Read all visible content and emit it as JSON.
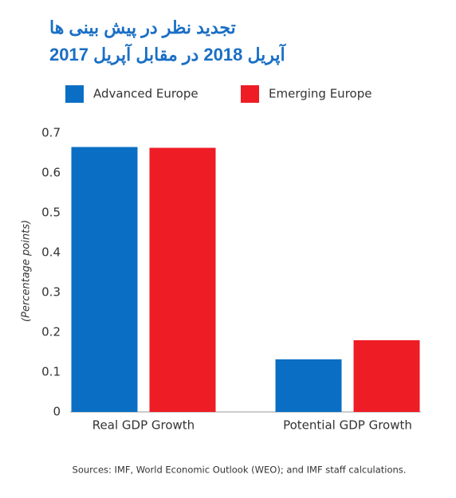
{
  "chart_data": {
    "type": "bar",
    "title": [
      "تجدید نظر در پیش بینی ها",
      "آپریل 2018 در مقابل آپریل 2017"
    ],
    "y_label": "(Percentage points)",
    "source": "Sources: IMF, World Economic Outlook (WEO); and IMF staff calculations.",
    "categories": [
      "Real GDP Growth",
      "Potential GDP Growth"
    ],
    "series": [
      {
        "name": "Advanced Europe",
        "color": "#0a6fc4",
        "values": [
          0.665,
          0.132
        ]
      },
      {
        "name": "Emerging Europe",
        "color": "#ee1c25",
        "values": [
          0.663,
          0.18
        ]
      }
    ],
    "ylim": [
      0,
      0.7
    ],
    "yticks": [
      0,
      0.1,
      0.2,
      0.3,
      0.4,
      0.5,
      0.6,
      0.7
    ],
    "grid": false
  }
}
